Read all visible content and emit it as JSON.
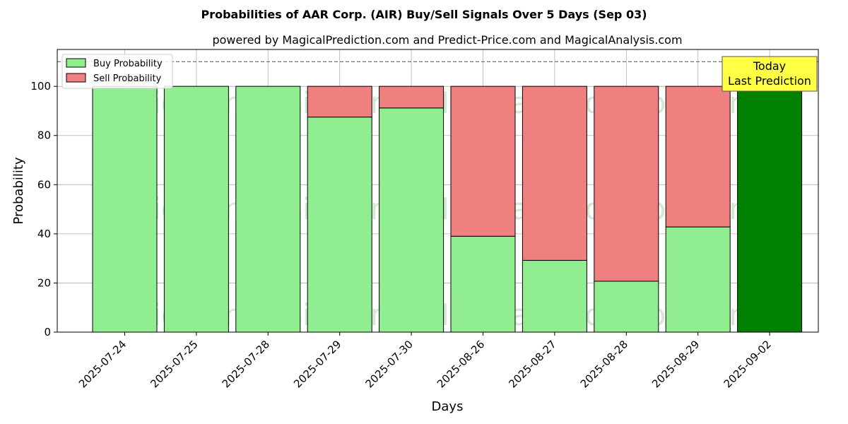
{
  "chart_data": {
    "type": "bar",
    "stacked": true,
    "title": "Probabilities of AAR Corp. (AIR) Buy/Sell Signals Over 5 Days (Sep 03)",
    "subtitle": "powered by MagicalPrediction.com and Predict-Price.com and MagicalAnalysis.com",
    "xlabel": "Days",
    "ylabel": "Probability",
    "ylim": [
      0,
      115
    ],
    "yticks": [
      0,
      20,
      40,
      60,
      80,
      100
    ],
    "reference_line": 110,
    "grid": true,
    "legend_position": "top-left",
    "categories": [
      "2025-07-24",
      "2025-07-25",
      "2025-07-28",
      "2025-07-29",
      "2025-07-30",
      "2025-08-26",
      "2025-08-27",
      "2025-08-28",
      "2025-08-29",
      "2025-09-02"
    ],
    "series": [
      {
        "name": "Buy Probability",
        "color": "#90ee90",
        "values": [
          100,
          100,
          100,
          87.5,
          91.2,
          39,
          29.2,
          20.7,
          42.8,
          100
        ]
      },
      {
        "name": "Sell Probability",
        "color": "#f08080",
        "values": [
          0,
          0,
          0,
          12.5,
          8.8,
          61,
          70.8,
          79.3,
          57.2,
          0
        ]
      }
    ],
    "highlight": {
      "category": "2025-09-02",
      "color": "#008000"
    },
    "annotation": {
      "line1": "Today",
      "line2": "Last Prediction",
      "background": "#ffff44"
    },
    "watermarks": [
      "MagicalAnalysis.com",
      "MagicalPrediction.com"
    ]
  }
}
